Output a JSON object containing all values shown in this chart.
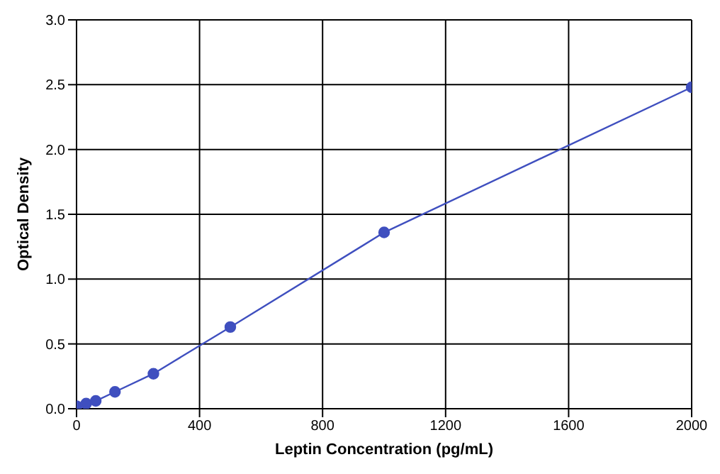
{
  "chart_data": {
    "type": "line",
    "xlabel": "Leptin Concentration (pg/mL)",
    "ylabel": "Optical Density",
    "x": [
      0,
      31.25,
      62.5,
      125,
      250,
      500,
      1000,
      2000
    ],
    "series": [
      {
        "color": "#3f4fbf",
        "values": [
          0.02,
          0.04,
          0.06,
          0.13,
          0.27,
          0.63,
          1.36,
          2.48
        ]
      }
    ],
    "xlim": [
      0,
      2000
    ],
    "xticks": [
      0,
      400,
      800,
      1200,
      1600,
      2000
    ],
    "ylim": [
      0,
      3
    ],
    "yticks": [
      {
        "value": 0,
        "label": "0.0"
      },
      {
        "value": 0.5,
        "label": "0.5"
      },
      {
        "value": 1,
        "label": "1.0"
      },
      {
        "value": 1.5,
        "label": "1.5"
      },
      {
        "value": 2,
        "label": "2.0"
      },
      {
        "value": 2.5,
        "label": "2.5"
      },
      {
        "value": 3,
        "label": "3.0"
      }
    ],
    "grid": true,
    "marker": "circle",
    "line_style": "solid"
  }
}
